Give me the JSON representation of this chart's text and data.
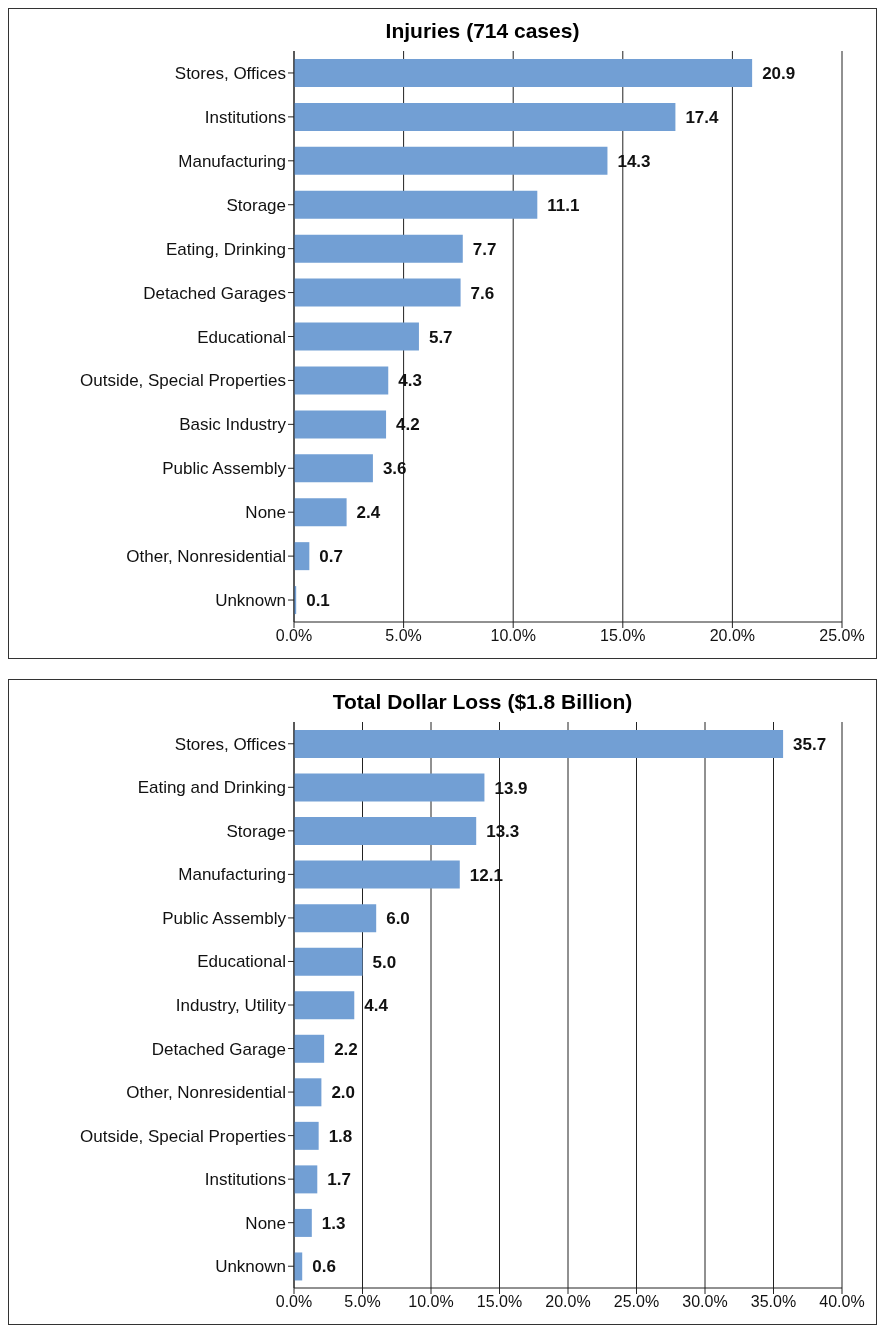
{
  "chart_data": [
    {
      "type": "bar",
      "orientation": "horizontal",
      "title": "Injuries (714 cases)",
      "categories": [
        "Stores, Offices",
        "Institutions",
        "Manufacturing",
        "Storage",
        "Eating, Drinking",
        "Detached Garages",
        "Educational",
        "Outside, Special Properties",
        "Basic Industry",
        "Public Assembly",
        "None",
        "Other, Nonresidential",
        "Unknown"
      ],
      "values": [
        20.9,
        17.4,
        14.3,
        11.1,
        7.7,
        7.6,
        5.7,
        4.3,
        4.2,
        3.6,
        2.4,
        0.7,
        0.1
      ],
      "value_labels": [
        "20.9",
        "17.4",
        "14.3",
        "11.1",
        "7.7",
        "7.6",
        "5.7",
        "4.3",
        "4.2",
        "3.6",
        "2.4",
        "0.7",
        "0.1"
      ],
      "color": "#729fd4",
      "xlim": [
        0,
        25
      ],
      "xticks": [
        {
          "value": 0,
          "label": "0.0%"
        },
        {
          "value": 5,
          "label": "5.0%"
        },
        {
          "value": 10,
          "label": "10.0%"
        },
        {
          "value": 15,
          "label": "15.0%"
        },
        {
          "value": 20,
          "label": "20.0%"
        },
        {
          "value": 25,
          "label": "25.0%"
        }
      ],
      "grid": "x",
      "legend": false
    },
    {
      "type": "bar",
      "orientation": "horizontal",
      "title": "Total Dollar Loss ($1.8 Billion)",
      "categories": [
        "Stores, Offices",
        "Eating and Drinking",
        "Storage",
        "Manufacturing",
        "Public Assembly",
        "Educational",
        "Industry, Utility",
        "Detached Garage",
        "Other, Nonresidential",
        "Outside, Special Properties",
        "Institutions",
        "None",
        "Unknown"
      ],
      "values": [
        35.7,
        13.9,
        13.3,
        12.1,
        6.0,
        5.0,
        4.4,
        2.2,
        2.0,
        1.8,
        1.7,
        1.3,
        0.6
      ],
      "value_labels": [
        "35.7",
        "13.9",
        "13.3",
        "12.1",
        "6.0",
        "5.0",
        "4.4",
        "2.2",
        "2.0",
        "1.8",
        "1.7",
        "1.3",
        "0.6"
      ],
      "color": "#729fd4",
      "xlim": [
        0,
        40
      ],
      "xticks": [
        {
          "value": 0,
          "label": "0.0%"
        },
        {
          "value": 5,
          "label": "5.0%"
        },
        {
          "value": 10,
          "label": "10.0%"
        },
        {
          "value": 15,
          "label": "15.0%"
        },
        {
          "value": 20,
          "label": "20.0%"
        },
        {
          "value": 25,
          "label": "25.0%"
        },
        {
          "value": 30,
          "label": "30.0%"
        },
        {
          "value": 35,
          "label": "35.0%"
        },
        {
          "value": 40,
          "label": "40.0%"
        }
      ],
      "grid": "x",
      "legend": false
    }
  ]
}
